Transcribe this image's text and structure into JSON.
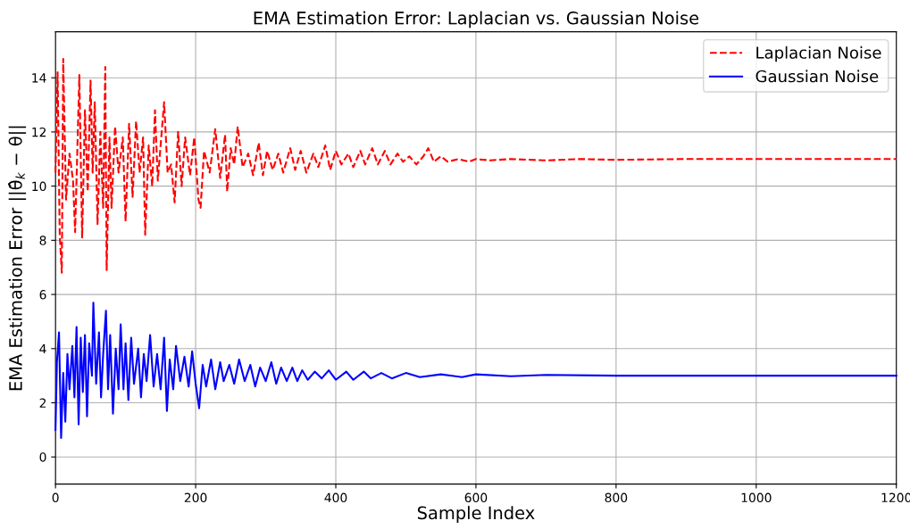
{
  "chart_data": {
    "type": "line",
    "title": "EMA Estimation Error: Laplacian vs. Gaussian Noise",
    "xlabel": "Sample Index",
    "ylabel": "EMA Estimation Error ||θ̂$_{k}$ − θ||",
    "xlim": [
      0,
      1200
    ],
    "ylim": [
      -1,
      15.7
    ],
    "xticks": [
      0,
      200,
      400,
      600,
      800,
      1000,
      1200
    ],
    "yticks": [
      0,
      2,
      4,
      6,
      8,
      10,
      12,
      14
    ],
    "grid": true,
    "legend": "top right",
    "series": [
      {
        "name": "Laplacian Noise",
        "color": "#ff0000",
        "line_style": "dashed",
        "x": [
          0,
          3,
          6,
          9,
          11,
          15,
          20,
          25,
          28,
          34,
          38,
          42,
          46,
          50,
          53,
          56,
          60,
          64,
          68,
          71,
          73,
          77,
          80,
          85,
          90,
          96,
          100,
          105,
          110,
          115,
          120,
          125,
          128,
          133,
          138,
          142,
          146,
          150,
          155,
          160,
          165,
          170,
          175,
          180,
          185,
          192,
          198,
          204,
          207,
          212,
          220,
          228,
          235,
          242,
          245,
          250,
          255,
          260,
          267,
          275,
          282,
          290,
          296,
          302,
          310,
          318,
          325,
          335,
          342,
          350,
          358,
          368,
          375,
          385,
          392,
          400,
          408,
          418,
          425,
          435,
          442,
          452,
          460,
          470,
          478,
          488,
          496,
          505,
          515,
          525,
          532,
          540,
          550,
          560,
          575,
          590,
          600,
          620,
          650,
          700,
          750,
          800,
          900,
          1000,
          1200
        ],
        "values": [
          10.5,
          14.2,
          8.2,
          6.8,
          14.7,
          9.5,
          11.2,
          10.2,
          8.3,
          14.1,
          8.1,
          12.8,
          9.8,
          13.9,
          10.5,
          13.1,
          8.6,
          12.0,
          9.2,
          14.4,
          6.9,
          11.8,
          9.2,
          12.2,
          10.5,
          11.8,
          8.7,
          12.3,
          9.6,
          12.4,
          10.5,
          11.8,
          8.2,
          11.5,
          10.0,
          12.8,
          10.2,
          11.5,
          13.1,
          10.5,
          10.8,
          9.4,
          12.0,
          10.0,
          11.8,
          10.4,
          11.8,
          9.5,
          9.2,
          11.3,
          10.5,
          12.1,
          10.3,
          11.9,
          9.8,
          11.4,
          10.8,
          12.2,
          10.7,
          11.2,
          10.4,
          11.6,
          10.4,
          11.3,
          10.6,
          11.2,
          10.5,
          11.4,
          10.6,
          11.3,
          10.5,
          11.2,
          10.7,
          11.5,
          10.6,
          11.3,
          10.8,
          11.2,
          10.7,
          11.3,
          10.8,
          11.4,
          10.8,
          11.3,
          10.8,
          11.2,
          10.9,
          11.1,
          10.8,
          11.1,
          11.4,
          10.9,
          11.1,
          10.9,
          11.0,
          10.9,
          11.0,
          10.95,
          11.0,
          10.95,
          11.0,
          10.97,
          11.0,
          11.0,
          11.0
        ]
      },
      {
        "name": "Gaussian Noise",
        "color": "#0000ff",
        "line_style": "solid",
        "x": [
          0,
          2,
          5,
          8,
          11,
          14,
          17,
          20,
          24,
          27,
          30,
          33,
          36,
          39,
          42,
          45,
          48,
          52,
          54,
          58,
          62,
          65,
          68,
          72,
          75,
          78,
          82,
          86,
          90,
          93,
          97,
          100,
          104,
          108,
          112,
          118,
          122,
          126,
          130,
          135,
          140,
          145,
          150,
          155,
          159,
          163,
          168,
          172,
          178,
          184,
          190,
          195,
          200,
          205,
          210,
          215,
          222,
          228,
          235,
          240,
          248,
          255,
          262,
          270,
          278,
          285,
          292,
          300,
          308,
          315,
          322,
          330,
          338,
          345,
          352,
          360,
          370,
          380,
          390,
          400,
          415,
          425,
          440,
          450,
          465,
          480,
          500,
          520,
          550,
          580,
          600,
          650,
          700,
          800,
          1000,
          1200
        ],
        "values": [
          1.0,
          3.5,
          4.6,
          0.7,
          3.1,
          1.3,
          3.8,
          2.5,
          4.1,
          2.2,
          4.8,
          1.2,
          4.4,
          2.4,
          4.5,
          1.5,
          4.2,
          3.0,
          5.7,
          2.7,
          4.6,
          2.2,
          3.8,
          5.4,
          2.5,
          4.5,
          1.6,
          4.0,
          2.5,
          4.9,
          2.5,
          4.2,
          2.1,
          4.4,
          2.7,
          4.0,
          2.2,
          3.8,
          2.8,
          4.5,
          2.6,
          3.8,
          2.5,
          4.4,
          1.7,
          3.6,
          2.5,
          4.1,
          2.8,
          3.7,
          2.6,
          3.9,
          2.7,
          1.8,
          3.4,
          2.6,
          3.6,
          2.5,
          3.5,
          2.8,
          3.4,
          2.7,
          3.6,
          2.8,
          3.4,
          2.6,
          3.3,
          2.8,
          3.5,
          2.7,
          3.3,
          2.8,
          3.3,
          2.8,
          3.2,
          2.85,
          3.15,
          2.9,
          3.2,
          2.85,
          3.15,
          2.85,
          3.15,
          2.9,
          3.1,
          2.9,
          3.1,
          2.95,
          3.05,
          2.95,
          3.05,
          2.98,
          3.03,
          3.0,
          3.0,
          3.0
        ]
      }
    ]
  }
}
